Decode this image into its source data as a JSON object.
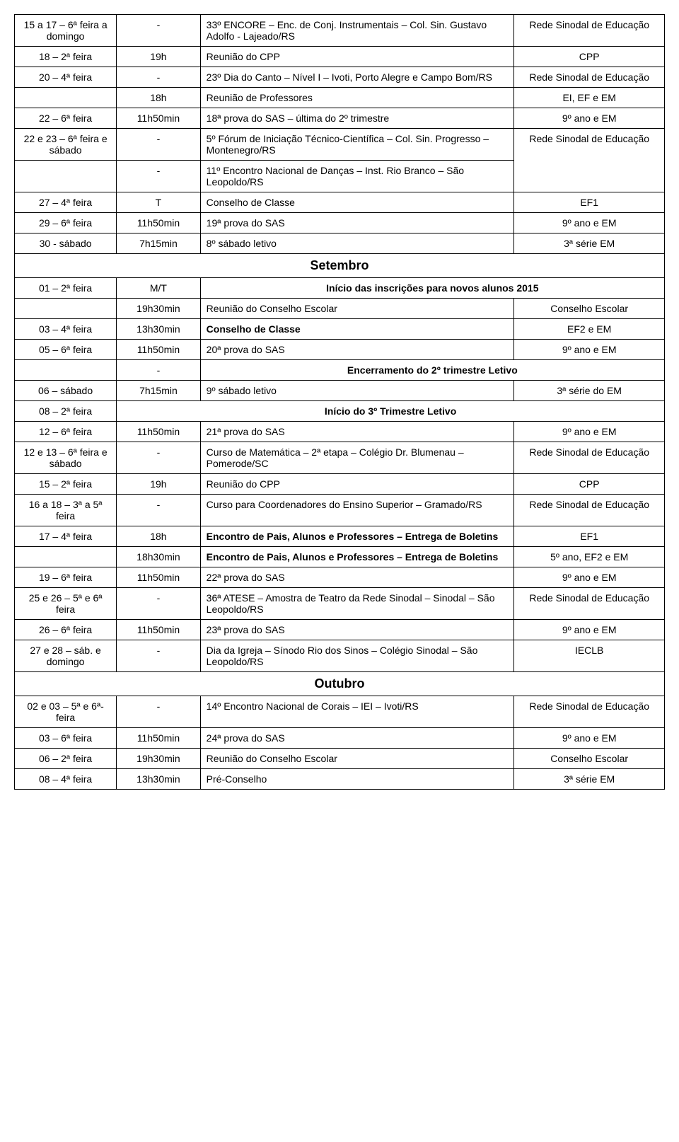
{
  "rows": [
    {
      "type": "row",
      "date": "15 a 17 – 6ª feira a domingo",
      "time": "-",
      "desc": "33º ENCORE – Enc. de Conj. Instrumentais – Col. Sin. Gustavo Adolfo - Lajeado/RS",
      "who": "Rede Sinodal de Educação"
    },
    {
      "type": "row",
      "date": "18 – 2ª feira",
      "time": "19h",
      "desc": "Reunião do CPP",
      "who": "CPP"
    },
    {
      "type": "row",
      "date": "20 – 4ª feira",
      "time": "-",
      "desc": "23º Dia do Canto – Nível I – Ivoti, Porto Alegre e Campo Bom/RS",
      "who": "Rede Sinodal de Educação"
    },
    {
      "type": "row_nodate",
      "time": "18h",
      "desc": "Reunião de Professores",
      "who": "EI, EF e EM"
    },
    {
      "type": "row",
      "date": "22 – 6ª feira",
      "time": "11h50min",
      "desc": "18ª prova do SAS – última do 2º trimestre",
      "who": "9º ano e EM"
    },
    {
      "type": "row",
      "date": "22 e 23 – 6ª feira e sábado",
      "time": "-",
      "desc": "5º Fórum de Iniciação Técnico-Científica – Col. Sin. Progresso – Montenegro/RS",
      "who": "Rede Sinodal de Educação",
      "whoRowspan": 2
    },
    {
      "type": "row_nodate_nowho",
      "time": "-",
      "desc": "11º Encontro Nacional de Danças – Inst. Rio Branco – São Leopoldo/RS"
    },
    {
      "type": "row",
      "date": "27 – 4ª feira",
      "time": "T",
      "desc": "Conselho de Classe",
      "who": "EF1"
    },
    {
      "type": "row",
      "date": "29 – 6ª feira",
      "time": "11h50min",
      "desc": "19ª prova do SAS",
      "who": "9º ano e EM"
    },
    {
      "type": "row",
      "date": "30 - sábado",
      "time": "7h15min",
      "desc": "8º sábado letivo",
      "who": "3ª série EM"
    },
    {
      "type": "month",
      "label": "Setembro"
    },
    {
      "type": "row_span",
      "date": "01 – 2ª feira",
      "time": "M/T",
      "desc": "Início das inscrições para novos alunos 2015",
      "descBold": true,
      "descSpan": 2
    },
    {
      "type": "row_nodate",
      "time": "19h30min",
      "desc": "Reunião do Conselho Escolar",
      "who": "Conselho Escolar"
    },
    {
      "type": "row",
      "date": "03 – 4ª feira",
      "time": "13h30min",
      "desc": "Conselho de Classe",
      "descBold": true,
      "who": "EF2 e EM"
    },
    {
      "type": "row",
      "date": "05 – 6ª feira",
      "time": "11h50min",
      "desc": "20ª prova do SAS",
      "who": "9º ano e EM"
    },
    {
      "type": "row_nodate_span",
      "time": "-",
      "desc": "Encerramento do 2º trimestre Letivo",
      "descBold": true,
      "descSpan": 2
    },
    {
      "type": "row",
      "date": "06 – sábado",
      "time": "7h15min",
      "desc": "9º sábado letivo",
      "who": "3ª série do EM"
    },
    {
      "type": "row_dateonly",
      "date": "08 – 2ª feira",
      "desc": "Início do 3º Trimestre Letivo",
      "descBold": true,
      "descSpan": 3
    },
    {
      "type": "row",
      "date": "12 – 6ª feira",
      "time": "11h50min",
      "desc": "21ª prova do SAS",
      "who": "9º ano e EM"
    },
    {
      "type": "row",
      "date": "12 e 13 – 6ª feira e sábado",
      "time": "-",
      "desc": "Curso de Matemática – 2ª etapa – Colégio Dr. Blumenau – Pomerode/SC",
      "who": "Rede Sinodal de Educação"
    },
    {
      "type": "row",
      "date": "15 – 2ª feira",
      "time": "19h",
      "desc": "Reunião do CPP",
      "who": "CPP"
    },
    {
      "type": "row",
      "date": "16 a 18 – 3ª a 5ª feira",
      "time": "-",
      "desc": "Curso para Coordenadores do Ensino Superior – Gramado/RS",
      "who": "Rede Sinodal de Educação"
    },
    {
      "type": "row",
      "date": "17 – 4ª feira",
      "time": "18h",
      "desc": "Encontro de Pais, Alunos e Professores – Entrega de Boletins",
      "descBold": true,
      "who": "EF1"
    },
    {
      "type": "row_nodate",
      "time": "18h30min",
      "desc": "Encontro de Pais, Alunos e Professores – Entrega de Boletins",
      "descBold": true,
      "who": "5º ano, EF2 e EM"
    },
    {
      "type": "row",
      "date": "19 – 6ª feira",
      "time": "11h50min",
      "desc": "22ª prova do SAS",
      "who": "9º ano e EM"
    },
    {
      "type": "row",
      "date": "25 e 26 – 5ª e 6ª feira",
      "time": "-",
      "desc": "36ª ATESE – Amostra de Teatro da Rede Sinodal – Sinodal – São Leopoldo/RS",
      "who": "Rede Sinodal de Educação"
    },
    {
      "type": "row",
      "date": "26 – 6ª feira",
      "time": "11h50min",
      "desc": "23ª prova do SAS",
      "who": "9º ano e EM"
    },
    {
      "type": "row",
      "date": "27 e 28 – sáb. e domingo",
      "time": "-",
      "desc": "Dia da Igreja – Sínodo Rio dos Sinos – Colégio Sinodal – São Leopoldo/RS",
      "who": "IECLB"
    },
    {
      "type": "month",
      "label": "Outubro"
    },
    {
      "type": "row",
      "date": "02 e 03 – 5ª e 6ª-feira",
      "time": "-",
      "desc": "14º Encontro Nacional de Corais – IEI – Ivoti/RS",
      "who": "Rede Sinodal de Educação"
    },
    {
      "type": "row",
      "date": "03 – 6ª feira",
      "time": "11h50min",
      "desc": "24ª prova do SAS",
      "who": "9º ano e EM"
    },
    {
      "type": "row",
      "date": "06 – 2ª feira",
      "time": "19h30min",
      "desc": "Reunião do Conselho Escolar",
      "who": "Conselho Escolar"
    },
    {
      "type": "row",
      "date": "08 – 4ª feira",
      "time": "13h30min",
      "desc": "Pré-Conselho",
      "who": "3ª série EM"
    }
  ]
}
